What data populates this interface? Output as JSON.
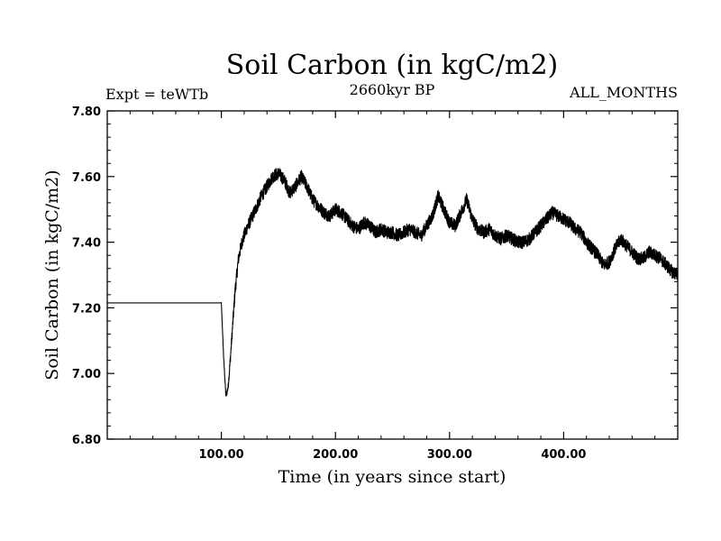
{
  "chart_data": {
    "type": "line",
    "title": "Soil Carbon (in kgC/m2)",
    "subtitle_left": "Expt = teWTb",
    "subtitle_center": "2660kyr BP",
    "subtitle_right": "ALL_MONTHS",
    "xlabel": "Time (in years since start)",
    "ylabel": "Soil Carbon (in kgC/m2)",
    "xlim": [
      0,
      500
    ],
    "ylim": [
      6.8,
      7.8
    ],
    "x_ticks": [
      100,
      200,
      300,
      400
    ],
    "x_tick_labels": [
      "100.00",
      "200.00",
      "300.00",
      "400.00"
    ],
    "y_ticks": [
      6.8,
      7.0,
      7.2,
      7.4,
      7.6,
      7.8
    ],
    "y_tick_labels": [
      "6.80",
      "7.00",
      "7.20",
      "7.40",
      "7.60",
      "7.80"
    ],
    "grid": false,
    "series": [
      {
        "name": "Soil Carbon",
        "color": "#000000",
        "noise_amplitude": 0.02,
        "x": [
          0,
          99,
          100,
          102,
          104,
          106,
          108,
          110,
          112,
          115,
          118,
          122,
          126,
          130,
          135,
          140,
          145,
          150,
          155,
          160,
          165,
          170,
          175,
          180,
          185,
          190,
          195,
          200,
          205,
          210,
          215,
          220,
          225,
          230,
          235,
          240,
          245,
          250,
          255,
          260,
          265,
          270,
          275,
          280,
          285,
          290,
          295,
          300,
          305,
          310,
          315,
          320,
          325,
          330,
          335,
          340,
          345,
          350,
          355,
          360,
          365,
          370,
          375,
          380,
          385,
          390,
          395,
          400,
          405,
          410,
          415,
          420,
          425,
          430,
          435,
          440,
          445,
          450,
          455,
          460,
          465,
          470,
          475,
          480,
          485,
          490,
          495,
          500
        ],
        "values": [
          7.215,
          7.215,
          7.215,
          7.05,
          6.93,
          6.96,
          7.05,
          7.15,
          7.25,
          7.35,
          7.4,
          7.44,
          7.47,
          7.5,
          7.54,
          7.57,
          7.6,
          7.61,
          7.59,
          7.55,
          7.57,
          7.6,
          7.57,
          7.53,
          7.51,
          7.49,
          7.48,
          7.5,
          7.49,
          7.47,
          7.45,
          7.44,
          7.46,
          7.45,
          7.43,
          7.44,
          7.43,
          7.43,
          7.42,
          7.43,
          7.44,
          7.43,
          7.42,
          7.45,
          7.48,
          7.54,
          7.5,
          7.46,
          7.45,
          7.49,
          7.53,
          7.47,
          7.44,
          7.43,
          7.44,
          7.42,
          7.41,
          7.42,
          7.41,
          7.4,
          7.4,
          7.41,
          7.43,
          7.45,
          7.47,
          7.49,
          7.48,
          7.47,
          7.46,
          7.44,
          7.43,
          7.4,
          7.38,
          7.36,
          7.33,
          7.34,
          7.38,
          7.41,
          7.39,
          7.37,
          7.35,
          7.35,
          7.37,
          7.36,
          7.35,
          7.33,
          7.31,
          7.3
        ]
      }
    ]
  }
}
